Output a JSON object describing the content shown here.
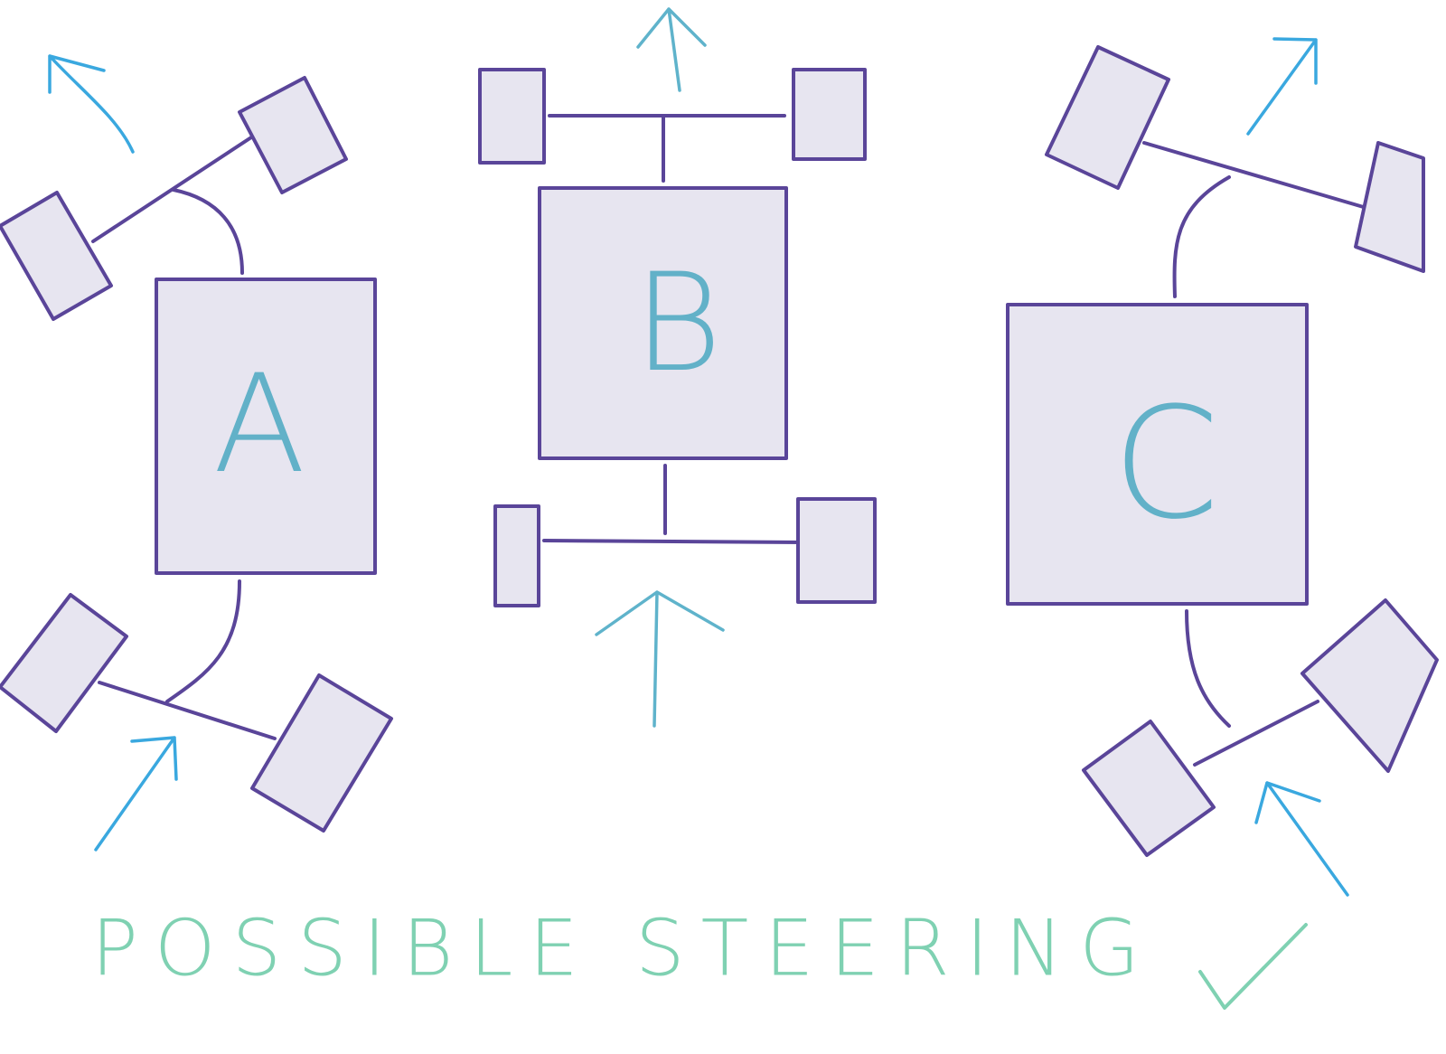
{
  "diagram": {
    "cars": [
      {
        "label": "A"
      },
      {
        "label": "B"
      },
      {
        "label": "C"
      }
    ],
    "caption": "POSSIBLE STEERING"
  }
}
